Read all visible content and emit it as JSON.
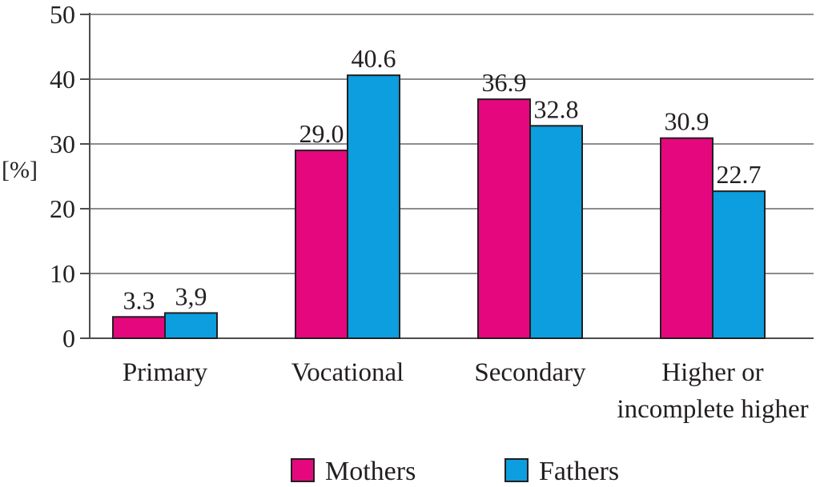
{
  "chart_data": {
    "type": "bar",
    "ylabel": "[%]",
    "ylim": [
      0,
      50
    ],
    "yticks": [
      0,
      10,
      20,
      30,
      40,
      50
    ],
    "grid": true,
    "legend_position": "bottom",
    "categories": [
      [
        "Primary"
      ],
      [
        "Vocational"
      ],
      [
        "Secondary"
      ],
      [
        "Higher or",
        "incomplete higher"
      ]
    ],
    "series": [
      {
        "name": "Mothers",
        "color": "#e5077d",
        "values": [
          3.3,
          29.0,
          36.9,
          30.9
        ],
        "labels": [
          "3.3",
          "29.0",
          "36.9",
          "30.9"
        ]
      },
      {
        "name": "Fathers",
        "color": "#0c9ede",
        "values": [
          3.9,
          40.6,
          32.8,
          22.7
        ],
        "labels": [
          "3,9",
          "40.6",
          "32.8",
          "22.7"
        ]
      }
    ]
  }
}
